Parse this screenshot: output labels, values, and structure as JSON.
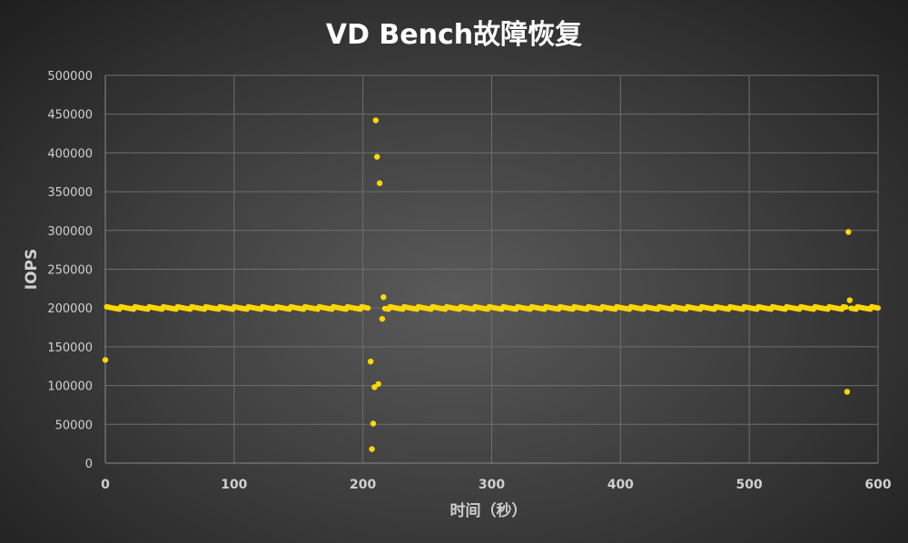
{
  "chart_data": {
    "type": "scatter",
    "title": "VD Bench故障恢复",
    "xlabel": "时间（秒）",
    "ylabel": "IOPS",
    "xlim": [
      0,
      600
    ],
    "ylim": [
      0,
      500000
    ],
    "x_ticks": [
      0,
      100,
      200,
      300,
      400,
      500,
      600
    ],
    "y_ticks": [
      0,
      50000,
      100000,
      150000,
      200000,
      250000,
      300000,
      350000,
      400000,
      450000,
      500000
    ],
    "grid": true,
    "legend": "none",
    "marker_color": "#FFD700",
    "baseline": {
      "x_range": [
        1,
        600
      ],
      "y": 200000,
      "note": "dense series of ~1 point per second near 200000"
    },
    "outliers": [
      {
        "x": 0,
        "y": 133000
      },
      {
        "x": 206,
        "y": 131000
      },
      {
        "x": 207,
        "y": 18000
      },
      {
        "x": 208,
        "y": 51000
      },
      {
        "x": 209,
        "y": 98000
      },
      {
        "x": 210,
        "y": 442000
      },
      {
        "x": 211,
        "y": 395000
      },
      {
        "x": 212,
        "y": 102000
      },
      {
        "x": 213,
        "y": 361000
      },
      {
        "x": 215,
        "y": 186000
      },
      {
        "x": 216,
        "y": 214000
      },
      {
        "x": 576,
        "y": 92000
      },
      {
        "x": 577,
        "y": 298000
      },
      {
        "x": 578,
        "y": 210000
      }
    ]
  }
}
